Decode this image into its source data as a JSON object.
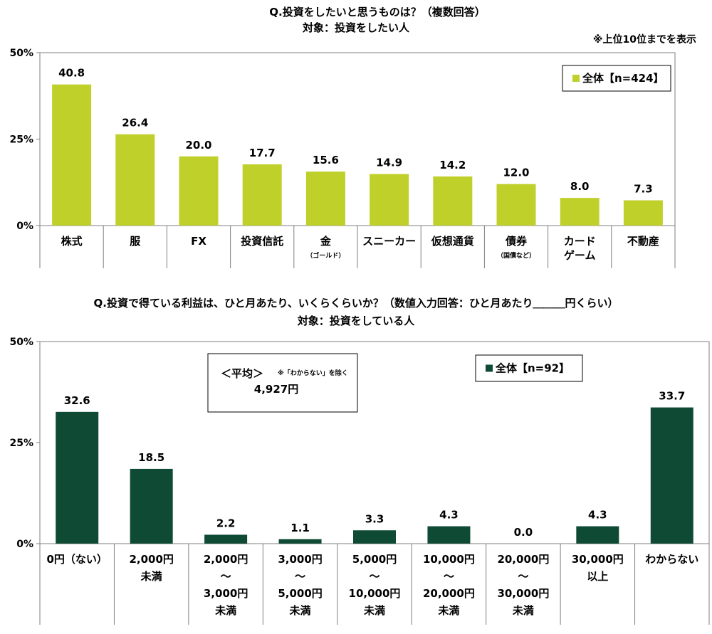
{
  "chart_data": [
    {
      "type": "bar",
      "title": "Q.投資をしたいと思うものは？（複数回答）",
      "subtitle": "対象：投資をしたい人",
      "note": "※上位10位までを表示",
      "color": "#bfd02b",
      "ylim": [
        0,
        50
      ],
      "yticks": [
        "0%",
        "25%",
        "50%"
      ],
      "legend": {
        "label": "全体【n=424】",
        "position": "top-right"
      },
      "categories": [
        [
          "株式"
        ],
        [
          "服"
        ],
        [
          "FX"
        ],
        [
          "投資信託"
        ],
        [
          "金"
        ],
        [
          "スニーカー"
        ],
        [
          "仮想通貨"
        ],
        [
          "債券"
        ],
        [
          "カード",
          "ゲーム"
        ],
        [
          "不動産"
        ]
      ],
      "category_notes": [
        "",
        "",
        "",
        "",
        "（ゴールド）",
        "",
        "",
        "（国債など）",
        "",
        ""
      ],
      "values": [
        40.8,
        26.4,
        20.0,
        17.7,
        15.6,
        14.9,
        14.2,
        12.0,
        8.0,
        7.3
      ],
      "value_labels": [
        "40.8",
        "26.4",
        "20.0",
        "17.7",
        "15.6",
        "14.9",
        "14.2",
        "12.0",
        "8.0",
        "7.3"
      ]
    },
    {
      "type": "bar",
      "title": "Q.投資で得ている利益は、ひと月あたり、いくらくらいか？（数値入力回答：ひと月あたり＿＿＿円くらい）",
      "subtitle": "対象：投資をしている人",
      "color": "#0f4a35",
      "ylim": [
        0,
        50
      ],
      "yticks": [
        "0%",
        "25%",
        "50%"
      ],
      "legend": {
        "label": "全体【n=92】",
        "position": "top-right"
      },
      "average_box": {
        "label": "＜平均＞",
        "note": "※「わからない」を除く",
        "value": "4,927円"
      },
      "categories": [
        [
          "0円（ない）"
        ],
        [
          "2,000円",
          "未満"
        ],
        [
          "2,000円",
          "～",
          "3,000円",
          "未満"
        ],
        [
          "3,000円",
          "～",
          "5,000円",
          "未満"
        ],
        [
          "5,000円",
          "～",
          "10,000円",
          "未満"
        ],
        [
          "10,000円",
          "～",
          "20,000円",
          "未満"
        ],
        [
          "20,000円",
          "～",
          "30,000円",
          "未満"
        ],
        [
          "30,000円",
          "以上"
        ],
        [
          "わからない"
        ]
      ],
      "values": [
        32.6,
        18.5,
        2.2,
        1.1,
        3.3,
        4.3,
        0.0,
        4.3,
        33.7
      ],
      "value_labels": [
        "32.6",
        "18.5",
        "2.2",
        "1.1",
        "3.3",
        "4.3",
        "0.0",
        "4.3",
        "33.7"
      ]
    }
  ]
}
